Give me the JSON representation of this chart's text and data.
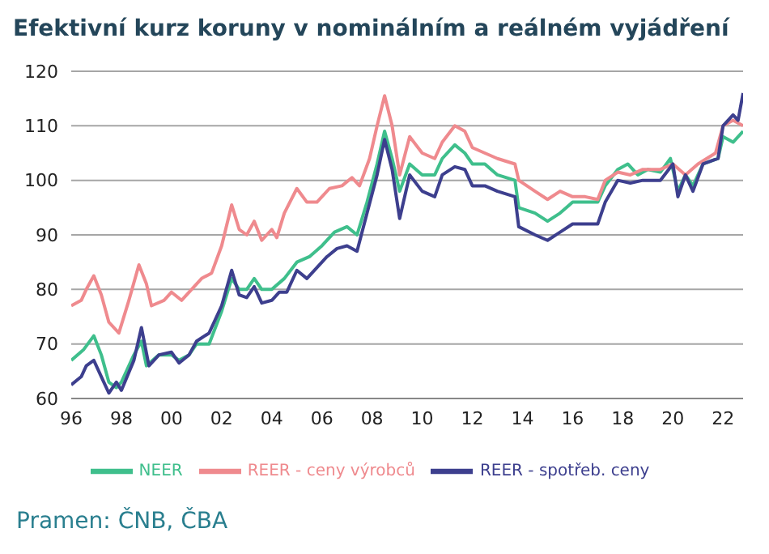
{
  "chart_data": {
    "type": "line",
    "title": "Efektivní kurz koruny v nominálním a reálném vyjádření",
    "annotations": [
      "Pramen: ČNB, ČBA"
    ],
    "xlim": [
      1996,
      2022.8
    ],
    "xticks": [
      {
        "value": 1996,
        "label": "96"
      },
      {
        "value": 1998,
        "label": "98"
      },
      {
        "value": 2000,
        "label": "00"
      },
      {
        "value": 2002,
        "label": "02"
      },
      {
        "value": 2004,
        "label": "04"
      },
      {
        "value": 2006,
        "label": "06"
      },
      {
        "value": 2008,
        "label": "08"
      },
      {
        "value": 2010,
        "label": "10"
      },
      {
        "value": 2012,
        "label": "12"
      },
      {
        "value": 2014,
        "label": "14"
      },
      {
        "value": 2016,
        "label": "16"
      },
      {
        "value": 2018,
        "label": "18"
      },
      {
        "value": 2020,
        "label": "20"
      },
      {
        "value": 2022,
        "label": "22"
      }
    ],
    "ylim": [
      60,
      120
    ],
    "yticks": [
      60,
      70,
      80,
      90,
      100,
      110,
      120
    ],
    "grid": "y",
    "legend": "bottom",
    "marker": "none",
    "line_style": "solid",
    "series": [
      {
        "name": "NEER",
        "color": "#3fbf8c",
        "x": [
          1996.0,
          1996.5,
          1996.9,
          1997.2,
          1997.5,
          1997.8,
          1998.0,
          1998.5,
          1998.8,
          1999.0,
          1999.5,
          2000.0,
          2000.3,
          2000.7,
          2001.0,
          2001.5,
          2002.0,
          2002.4,
          2002.7,
          2003.0,
          2003.3,
          2003.6,
          2004.0,
          2004.5,
          2005.0,
          2005.5,
          2006.0,
          2006.5,
          2007.0,
          2007.4,
          2007.8,
          2008.2,
          2008.5,
          2008.8,
          2009.1,
          2009.5,
          2010.0,
          2010.5,
          2010.8,
          2011.3,
          2011.7,
          2012.0,
          2012.5,
          2013.0,
          2013.7,
          2013.85,
          2014.5,
          2015.0,
          2015.5,
          2016.0,
          2016.5,
          2017.0,
          2017.3,
          2017.8,
          2018.2,
          2018.6,
          2019.0,
          2019.5,
          2019.9,
          2020.2,
          2020.5,
          2020.8,
          2021.2,
          2021.8,
          2022.0,
          2022.4,
          2022.8
        ],
        "values": [
          67,
          69,
          71.5,
          68,
          63,
          62,
          63,
          68,
          70.5,
          66,
          68,
          68,
          67,
          68,
          70,
          70,
          76,
          82,
          80,
          80,
          82,
          80,
          80,
          82,
          85,
          86,
          88,
          90.5,
          91.5,
          90,
          96,
          103,
          109,
          104,
          98,
          103,
          101,
          101,
          104,
          106.5,
          105,
          103,
          103,
          101,
          100,
          95,
          94,
          92.5,
          94,
          96,
          96,
          96,
          99,
          102,
          103,
          101,
          102,
          101.5,
          104,
          98,
          101,
          99,
          103,
          104,
          108,
          107,
          109
        ]
      },
      {
        "name": "REER - ceny výrobců",
        "color": "#ef8a8e",
        "x": [
          1996.0,
          1996.4,
          1996.6,
          1996.9,
          1997.2,
          1997.5,
          1997.9,
          1998.3,
          1998.7,
          1999.0,
          1999.2,
          1999.7,
          2000.0,
          2000.4,
          2000.8,
          2001.2,
          2001.6,
          2002.0,
          2002.4,
          2002.7,
          2003.0,
          2003.3,
          2003.6,
          2004.0,
          2004.2,
          2004.5,
          2005.0,
          2005.4,
          2005.8,
          2006.3,
          2006.8,
          2007.2,
          2007.5,
          2007.9,
          2008.2,
          2008.5,
          2008.8,
          2009.1,
          2009.5,
          2010.0,
          2010.5,
          2010.8,
          2011.3,
          2011.7,
          2012.0,
          2012.5,
          2013.0,
          2013.7,
          2013.85,
          2014.5,
          2015.0,
          2015.5,
          2016.0,
          2016.5,
          2017.0,
          2017.3,
          2017.8,
          2018.3,
          2018.8,
          2019.5,
          2020.0,
          2020.5,
          2021.0,
          2021.7,
          2022.0,
          2022.4,
          2022.8
        ],
        "values": [
          77,
          78,
          80,
          82.5,
          79,
          74,
          72,
          78,
          84.5,
          81,
          77,
          78,
          79.5,
          78,
          80,
          82,
          83,
          88,
          95.5,
          91,
          90,
          92.5,
          89,
          91,
          89.5,
          94,
          98.5,
          96,
          96,
          98.5,
          99,
          100.5,
          99,
          104,
          110,
          115.5,
          110,
          101,
          108,
          105,
          104,
          107,
          110,
          109,
          106,
          105,
          104,
          103,
          100,
          98,
          96.5,
          98,
          97,
          97,
          96.5,
          100,
          101.5,
          101,
          102,
          102,
          103,
          101,
          103,
          105,
          110,
          111,
          110
        ]
      },
      {
        "name": "REER - spotřeb. ceny",
        "color": "#3d3f8e",
        "x": [
          1996.0,
          1996.4,
          1996.6,
          1996.9,
          1997.3,
          1997.5,
          1997.8,
          1998.0,
          1998.5,
          1998.8,
          1999.1,
          1999.5,
          2000.0,
          2000.3,
          2000.7,
          2001.0,
          2001.5,
          2002.0,
          2002.4,
          2002.7,
          2003.0,
          2003.3,
          2003.6,
          2004.0,
          2004.3,
          2004.6,
          2005.0,
          2005.4,
          2005.8,
          2006.2,
          2006.6,
          2007.0,
          2007.4,
          2007.8,
          2008.2,
          2008.5,
          2008.8,
          2009.1,
          2009.5,
          2010.0,
          2010.5,
          2010.8,
          2011.3,
          2011.7,
          2012.0,
          2012.5,
          2013.0,
          2013.7,
          2013.85,
          2014.5,
          2015.0,
          2015.5,
          2016.0,
          2016.5,
          2017.0,
          2017.3,
          2017.8,
          2018.3,
          2018.8,
          2019.5,
          2020.0,
          2020.2,
          2020.5,
          2020.8,
          2021.2,
          2021.8,
          2022.0,
          2022.4,
          2022.6,
          2022.8
        ],
        "values": [
          62.5,
          64,
          66,
          67,
          63,
          61,
          63,
          61.5,
          67,
          73,
          66,
          68,
          68.5,
          66.5,
          68,
          70.5,
          72,
          77,
          83.5,
          79,
          78.5,
          80.5,
          77.5,
          78,
          79.5,
          79.5,
          83.5,
          82,
          84,
          86,
          87.5,
          88,
          87,
          94,
          101,
          107.5,
          102,
          93,
          101,
          98,
          97,
          101,
          102.5,
          102,
          99,
          99,
          98,
          97,
          91.5,
          90,
          89,
          90.5,
          92,
          92,
          92,
          96,
          100,
          99.5,
          100,
          100,
          103,
          97,
          101,
          98,
          103,
          104,
          110,
          112,
          111,
          116
        ]
      }
    ]
  }
}
